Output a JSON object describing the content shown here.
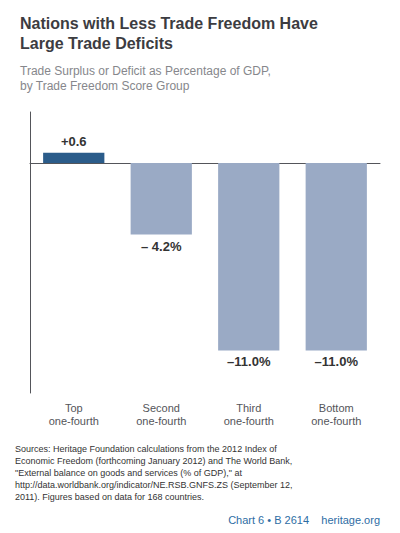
{
  "chart_data": {
    "type": "bar",
    "title": "Nations with Less Trade Freedom Have\nLarge Trade Deficits",
    "subtitle": "Trade Surplus or Deficit as Percentage of GDP,\nby Trade Freedom Score Group",
    "categories": [
      "Top\none-fourth",
      "Second\none-fourth",
      "Third\none-fourth",
      "Bottom\none-fourth"
    ],
    "values": [
      0.6,
      -4.2,
      -11.0,
      -11.0
    ],
    "value_labels": [
      "+0.6",
      "– 4.2%",
      "–11.0%",
      "–11.0%"
    ],
    "colors": [
      "#2b5c8a",
      "#9aaac5",
      "#9aaac5",
      "#9aaac5"
    ],
    "ylim": [
      -13.5,
      3.0
    ],
    "data_labels": true,
    "tick_labels": "x",
    "grid": false,
    "annotations": [
      "Sources: Heritage Foundation calculations from the 2012 Index of\nEconomic Freedom (forthcoming January 2012) and The World Bank,\n\"External balance on goods and services (% of GDP),\" at\nhttp://data.worldbank.org/indicator/NE.RSB.GNFS.ZS (September 12,\n2011). Figures based on data for 168 countries.",
      "Chart 6 • B 2614    heritage.org"
    ]
  }
}
